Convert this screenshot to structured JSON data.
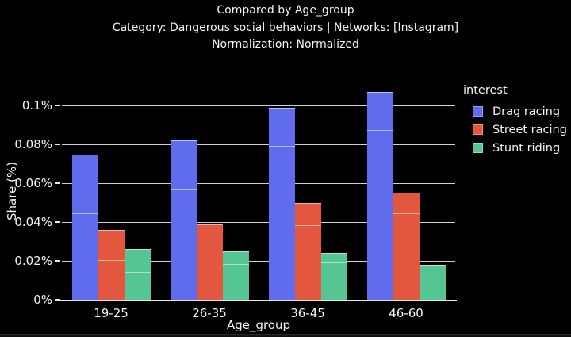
{
  "title": {
    "line1": "Compared by Age_group",
    "line2": "Category: Dangerous social behaviors | Networks: [Instagram]",
    "line3": "Normalization: Normalized"
  },
  "chart_data": {
    "type": "bar",
    "barmode": "grouped",
    "title": "Compared by Age_group",
    "subtitle": "Category: Dangerous social behaviors | Networks: [Instagram]",
    "subtitle2": "Normalization: Normalized",
    "xlabel": "Age_group",
    "ylabel": "Share (%)",
    "categories": [
      "19-25",
      "26-35",
      "36-45",
      "46-60"
    ],
    "series": [
      {
        "name": "Drag racing",
        "color": "#5f6cee",
        "values": [
          0.075,
          0.082,
          0.099,
          0.107
        ],
        "segment_boundaries": [
          0.044,
          0.057,
          0.079,
          0.087
        ]
      },
      {
        "name": "Street racing",
        "color": "#e2573e",
        "values": [
          0.036,
          0.039,
          0.05,
          0.055
        ],
        "segment_boundaries": [
          0.02,
          0.025,
          0.038,
          0.044
        ]
      },
      {
        "name": "Stunt riding",
        "color": "#55c594",
        "values": [
          0.026,
          0.025,
          0.024,
          0.018
        ],
        "segment_boundaries": [
          0.014,
          0.018,
          0.019,
          0.015
        ]
      }
    ],
    "yticks": [
      {
        "value": 0,
        "label": "0%"
      },
      {
        "value": 0.02,
        "label": "0.02%"
      },
      {
        "value": 0.04,
        "label": "0.04%"
      },
      {
        "value": 0.06,
        "label": "0.06%"
      },
      {
        "value": 0.08,
        "label": "0.08%"
      },
      {
        "value": 0.1,
        "label": "0.1%"
      }
    ],
    "ylim": [
      0,
      0.112
    ],
    "grid": true,
    "legend_title": "interest",
    "legend_position": "right",
    "background": "#000000",
    "text_color": "#f5f5f5",
    "gridline_color": "#cfcfcf",
    "axis_line_color": "#e8e8e8"
  }
}
